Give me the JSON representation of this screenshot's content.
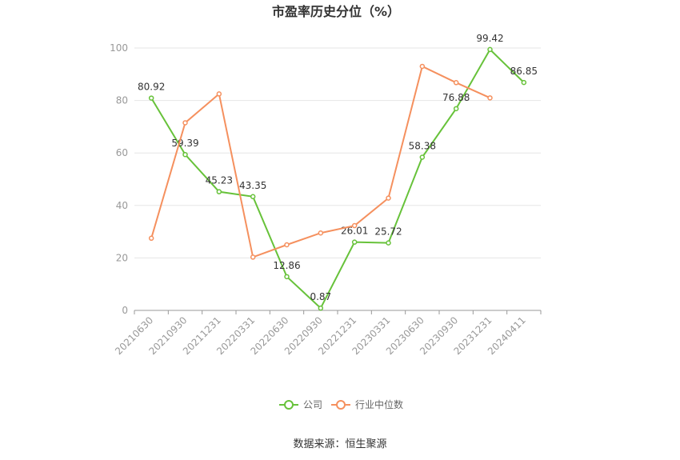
{
  "chart_data": {
    "type": "line",
    "title": "市盈率历史分位（%）",
    "categories": [
      "20210630",
      "20210930",
      "20211231",
      "20220331",
      "20220630",
      "20220930",
      "20221231",
      "20230331",
      "20230630",
      "20230930",
      "20231231",
      "20240411"
    ],
    "ylim": [
      0,
      100
    ],
    "yticks": [
      0,
      20,
      40,
      60,
      80,
      100
    ],
    "grid": true,
    "legend_position": "bottom",
    "series": [
      {
        "name": "公司",
        "color": "#67c23a",
        "values": [
          80.92,
          59.39,
          45.23,
          43.35,
          12.86,
          0.87,
          26.01,
          25.72,
          58.38,
          76.88,
          99.42,
          86.85
        ],
        "labels": [
          "80.92",
          "59.39",
          "45.23",
          "43.35",
          "12.86",
          "0.87",
          "26.01",
          "25.72",
          "58.38",
          "76.88",
          "99.42",
          "86.85"
        ]
      },
      {
        "name": "行业中位数",
        "color": "#f5905e",
        "values": [
          27.5,
          71.5,
          82.5,
          20.3,
          25.0,
          29.5,
          32.3,
          42.8,
          93.0,
          86.8,
          81.0,
          null
        ]
      }
    ]
  },
  "source": "数据来源：恒生聚源"
}
